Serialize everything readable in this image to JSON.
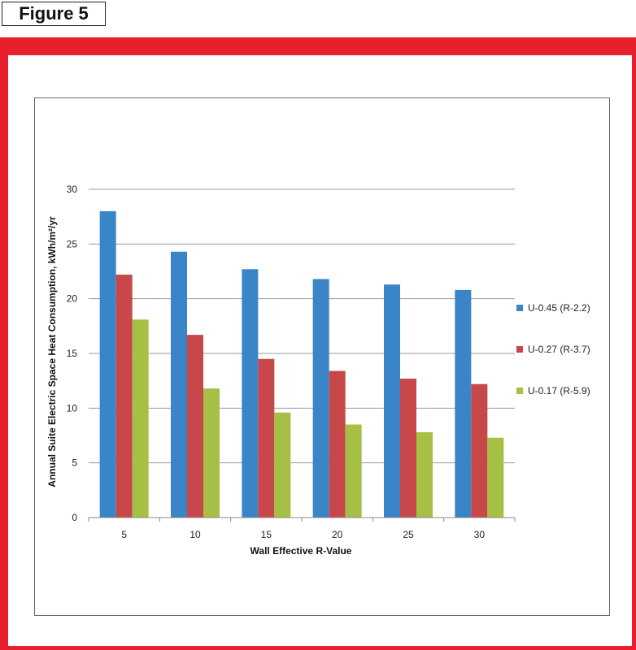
{
  "figure_label": "Figure 5",
  "colors": {
    "frame": "#e8202e",
    "grid": "#9a9a9a"
  },
  "chart_data": {
    "type": "bar",
    "categories": [
      "5",
      "10",
      "15",
      "20",
      "25",
      "30"
    ],
    "series": [
      {
        "name": "U-0.45 (R-2.2)",
        "color": "#3a85c8",
        "values": [
          28.0,
          24.3,
          22.7,
          21.8,
          21.3,
          20.8
        ]
      },
      {
        "name": "U-0.27 (R-3.7)",
        "color": "#c8474a",
        "values": [
          22.2,
          16.7,
          14.5,
          13.4,
          12.7,
          12.2
        ]
      },
      {
        "name": "U-0.17 (R-5.9)",
        "color": "#a6c045",
        "values": [
          18.1,
          11.8,
          9.6,
          8.5,
          7.8,
          7.3
        ]
      }
    ],
    "xlabel": "Wall Effective R-Value",
    "ylabel": "Annual Suite Electric Space Heat Consumption, kWh/m²/yr",
    "ylim": [
      0,
      30
    ],
    "yticks": [
      0,
      5,
      10,
      15,
      20,
      25,
      30
    ],
    "grid": true,
    "legend_position": "right"
  }
}
